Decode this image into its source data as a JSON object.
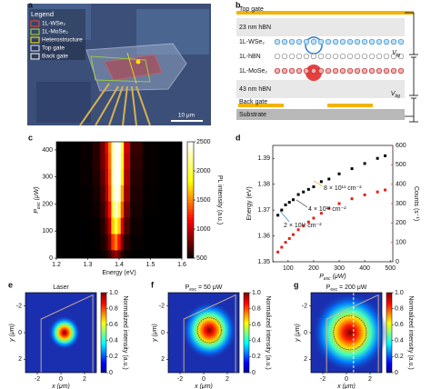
{
  "panel_labels": [
    "a",
    "b",
    "c",
    "d",
    "e",
    "f",
    "g"
  ],
  "panel_a": {
    "legend_title": "Legend",
    "legend": [
      {
        "label": "1L-WSe₂",
        "color": "#e04040"
      },
      {
        "label": "1L-MoSe₂",
        "color": "#9ac84a"
      },
      {
        "label": "Heterostructure",
        "color": "#e8d020"
      },
      {
        "label": "Top gate",
        "color": "#c8c8e8"
      },
      {
        "label": "Back gate",
        "color": "#e0e0e0"
      }
    ],
    "scale_bar": "10 μm"
  },
  "panel_b": {
    "layers": [
      "Top gate",
      "23 nm hBN",
      "1L-WSe₂",
      "1L-hBN",
      "1L-MoSe₂",
      "43 nm hBN",
      "Back gate",
      "Substrate"
    ],
    "voltages": [
      {
        "main": "V",
        "sub": "tg"
      },
      {
        "main": "V",
        "sub": "bg"
      }
    ]
  },
  "chart_data": [
    {
      "type": "heatmap",
      "x": [
        1.2,
        1.25,
        1.3,
        1.33,
        1.35,
        1.36,
        1.37,
        1.38,
        1.39,
        1.4,
        1.41,
        1.42,
        1.45,
        1.5,
        1.55,
        1.6
      ],
      "y": [
        0,
        60,
        120,
        180,
        240,
        300,
        360,
        420
      ],
      "values": [
        [
          500,
          500,
          500,
          500,
          520,
          560,
          650,
          800,
          900,
          750,
          600,
          540,
          500,
          500,
          500,
          500
        ],
        [
          500,
          500,
          500,
          510,
          560,
          650,
          850,
          1300,
          1500,
          1200,
          800,
          600,
          520,
          500,
          500,
          500
        ],
        [
          500,
          500,
          500,
          520,
          600,
          750,
          1000,
          1700,
          2000,
          1700,
          1100,
          700,
          540,
          500,
          500,
          500
        ],
        [
          500,
          500,
          510,
          540,
          650,
          850,
          1200,
          2000,
          2400,
          2100,
          1400,
          800,
          560,
          510,
          500,
          500
        ],
        [
          500,
          500,
          510,
          560,
          700,
          950,
          1350,
          2200,
          2500,
          2400,
          1600,
          900,
          580,
          510,
          500,
          500
        ],
        [
          500,
          500,
          520,
          580,
          750,
          1000,
          1400,
          2300,
          2500,
          2500,
          1800,
          950,
          600,
          520,
          500,
          500
        ],
        [
          500,
          500,
          520,
          600,
          800,
          1050,
          1450,
          2300,
          2500,
          2500,
          1900,
          1000,
          620,
          520,
          500,
          500
        ],
        [
          500,
          500,
          520,
          600,
          800,
          1100,
          1500,
          2300,
          2500,
          2500,
          2000,
          1050,
          640,
          520,
          500,
          500
        ]
      ],
      "xlim": [
        1.2,
        1.6
      ],
      "xticks": [
        1.2,
        1.3,
        1.4,
        1.5,
        1.6
      ],
      "ylim": [
        0,
        430
      ],
      "yticks": [
        0,
        100,
        200,
        300,
        400
      ],
      "clim": [
        500,
        2500
      ],
      "cticks": [
        500,
        1000,
        1500,
        2000,
        2500
      ],
      "xlabel": "Energy (eV)",
      "ylabel": {
        "main": "P",
        "sub": "exc",
        "rest": " (μW)"
      },
      "colorbar_label": "PL intensity (a.u.)"
    },
    {
      "type": "scatter",
      "x": [
        60,
        75,
        90,
        105,
        120,
        140,
        160,
        180,
        200,
        230,
        260,
        300,
        350,
        400,
        450,
        480
      ],
      "series": [
        {
          "color": "#000000",
          "values": [
            1.368,
            1.37,
            1.372,
            1.373,
            1.374,
            1.376,
            1.377,
            1.378,
            1.379,
            1.381,
            1.382,
            1.384,
            1.386,
            1.388,
            1.39,
            1.391
          ]
        },
        {
          "color": "#e0201b",
          "axis": "y2",
          "values": [
            50,
            75,
            100,
            120,
            140,
            165,
            185,
            205,
            225,
            250,
            275,
            300,
            325,
            345,
            360,
            370
          ]
        }
      ],
      "xlim": [
        40,
        510
      ],
      "xticks": [
        100,
        200,
        300,
        400,
        500
      ],
      "ylim": [
        1.35,
        1.395
      ],
      "yticks": [
        1.35,
        1.36,
        1.37,
        1.38,
        1.39
      ],
      "y2lim": [
        0,
        600
      ],
      "y2ticks": [
        0,
        100,
        200,
        300,
        400,
        500,
        600
      ],
      "xlabel": {
        "main": "P",
        "sub": "exc",
        "rest": " (μW)"
      },
      "ylabel": "Energy (eV)",
      "y2label": "Counts (s⁻¹)",
      "annotations": [
        {
          "text": "8 × 10¹¹ cm⁻²",
          "color": "#e8a000"
        },
        {
          "text": "4 × 10¹¹ cm⁻²",
          "color": "#333333"
        },
        {
          "text": "2 × 10¹¹ cm⁻²",
          "color": "#2a8ad0"
        }
      ]
    },
    {
      "type": "map",
      "title": {
        "main": "Laser",
        "sub": "",
        "rest": ""
      },
      "xlim": [
        -3,
        3
      ],
      "xticks": [
        -2,
        0,
        2
      ],
      "ylim": [
        3,
        -3
      ],
      "yticks": [
        -2,
        0,
        2
      ],
      "xlabel": {
        "main": "x",
        "sub": "",
        "rest": " (μm)"
      },
      "ylabel": {
        "main": "y",
        "sub": "",
        "rest": " (μm)"
      },
      "cticks": [
        0,
        0.2,
        0.4,
        0.6,
        0.8,
        {
          "value": 1,
          "label": "1.0"
        }
      ],
      "colorbar_label": "Normalized intensity (a.u.)"
    },
    {
      "type": "map",
      "title": {
        "main": "P",
        "sub": "exc",
        "rest": " = 50 μW"
      },
      "xlim": [
        -3,
        3
      ],
      "xticks": [
        -2,
        0,
        2
      ],
      "ylim": [
        3,
        -3
      ],
      "yticks": [
        -2,
        0,
        2
      ],
      "xlabel": {
        "main": "x",
        "sub": "",
        "rest": " (μm)"
      },
      "ylabel": {
        "main": "y",
        "sub": "",
        "rest": " (μm)"
      },
      "cticks": [
        0,
        0.2,
        0.4,
        0.6,
        0.8,
        {
          "value": 1,
          "label": "1.0"
        }
      ],
      "colorbar_label": "Normalized intensity (a.u.)"
    },
    {
      "type": "map",
      "title": {
        "main": "P",
        "sub": "exc",
        "rest": " = 200 μW"
      },
      "xlim": [
        -3,
        3
      ],
      "xticks": [
        -2,
        0,
        2
      ],
      "ylim": [
        3,
        -3
      ],
      "yticks": [
        -2,
        0,
        2
      ],
      "xlabel": {
        "main": "x",
        "sub": "",
        "rest": " (μm)"
      },
      "ylabel": {
        "main": "y",
        "sub": "",
        "rest": " (μm)"
      },
      "cticks": [
        0,
        0.2,
        0.4,
        0.6,
        0.8,
        {
          "value": 1,
          "label": "1.0"
        }
      ],
      "colorbar_label": "Normalized intensity (a.u.)"
    }
  ]
}
